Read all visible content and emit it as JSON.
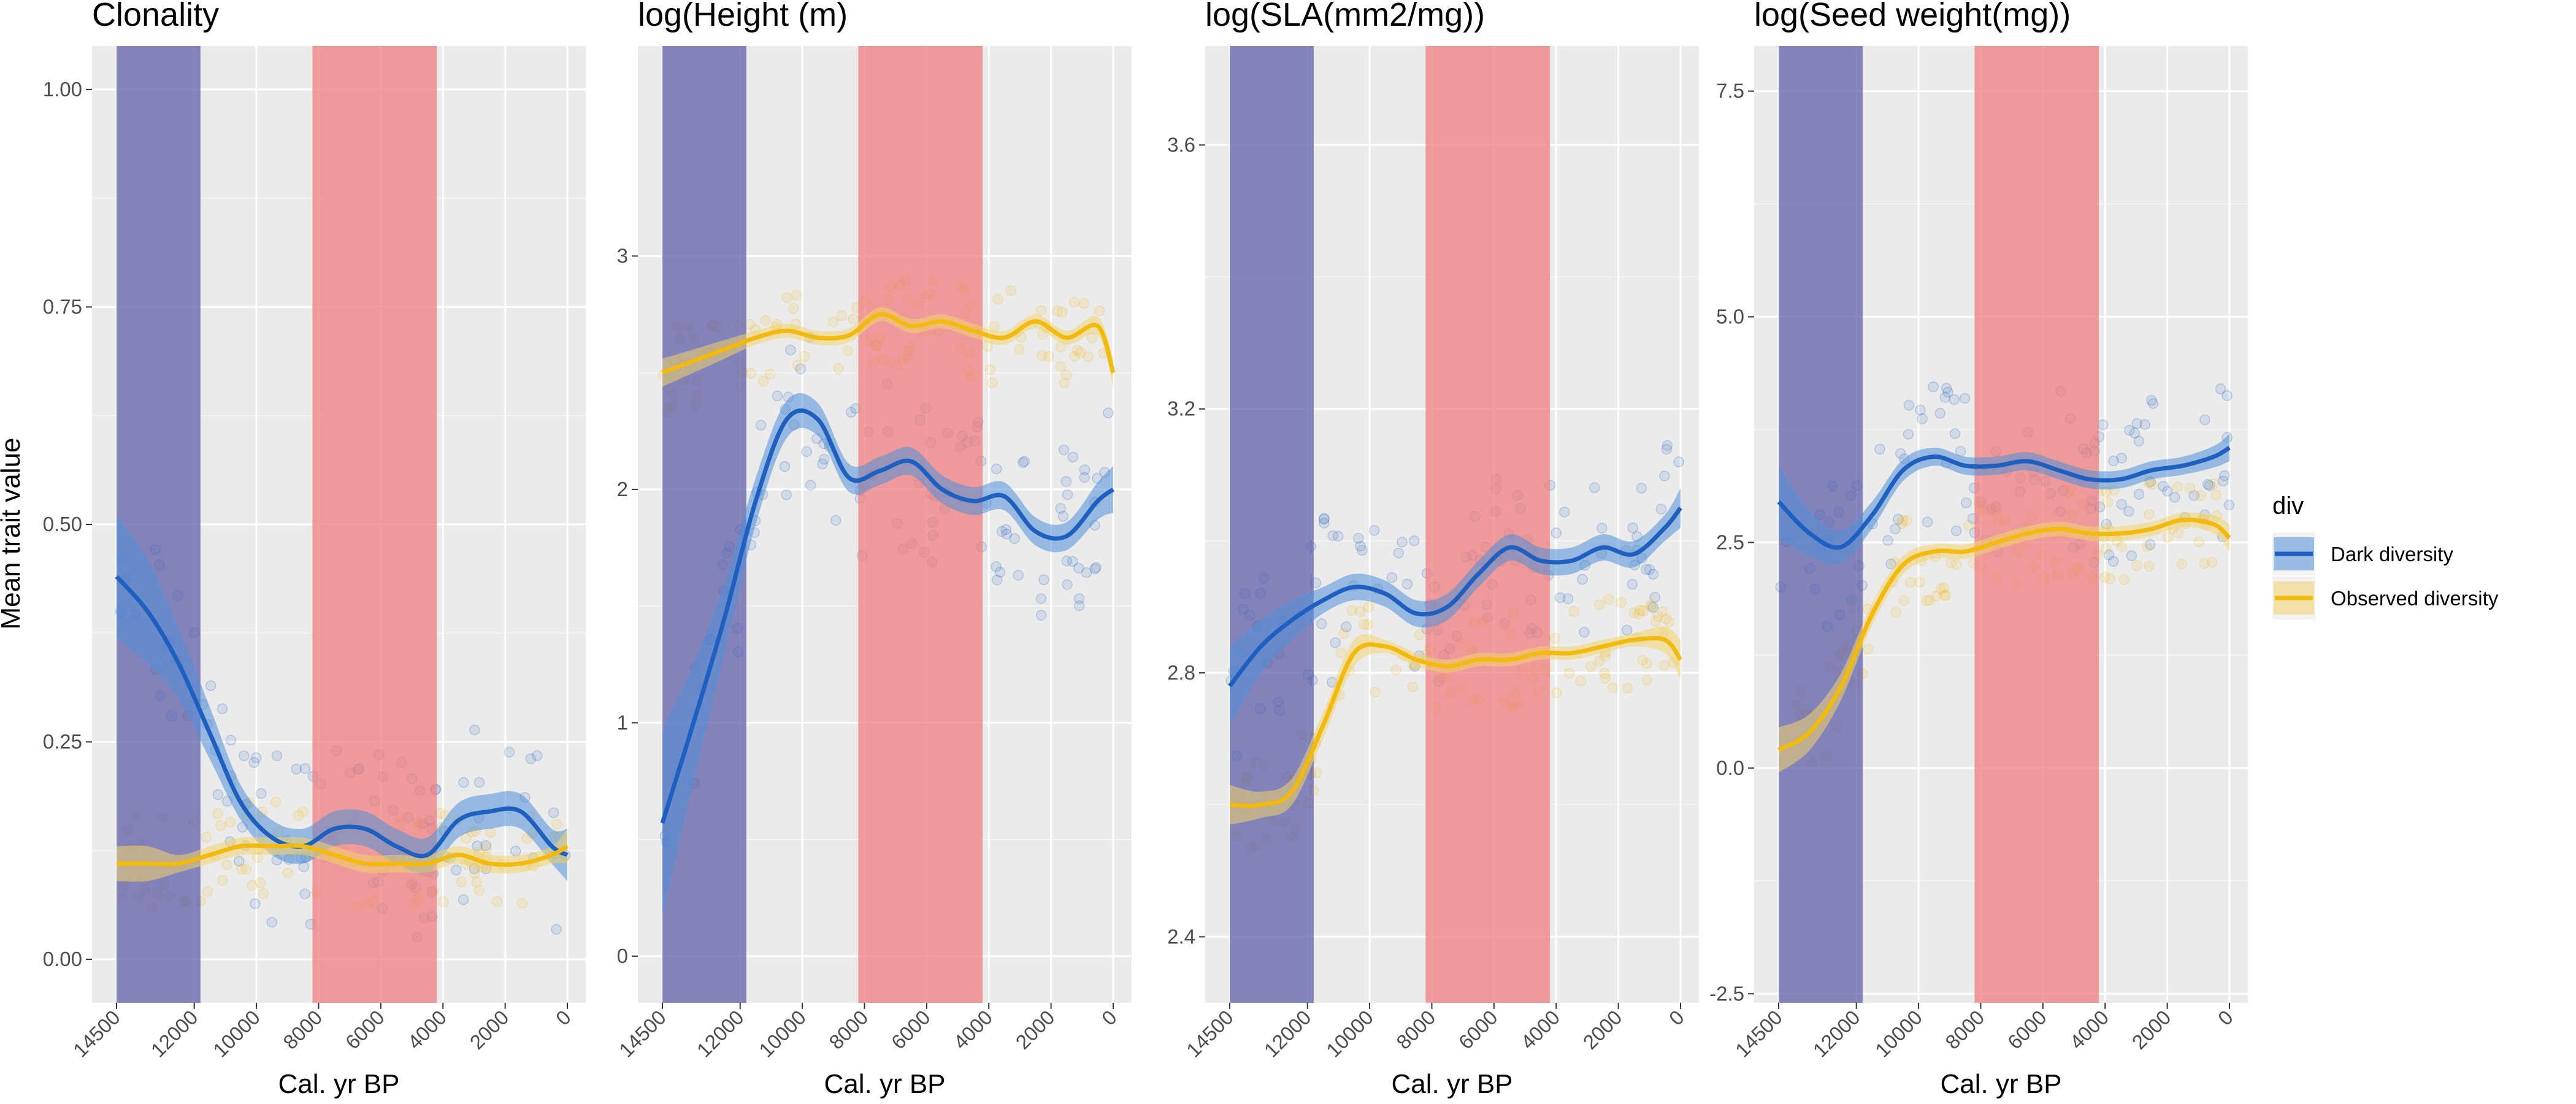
{
  "figure": {
    "y_axis_title": "Mean trait value",
    "x_axis_title": "Cal. yr BP"
  },
  "colors": {
    "panel_bg": "#EBEBEB",
    "grid": "#FFFFFF",
    "dark_diversity": "#1F5FBF",
    "dark_diversity_band": "#4F8FD8",
    "observed_diversity": "#F2B90F",
    "observed_diversity_band": "#F2D46B",
    "shade_early": "#5A5AA8",
    "shade_mid": "#F07A7A"
  },
  "legend": {
    "title": "div",
    "items": [
      {
        "label": "Dark diversity",
        "color": "#1F5FBF"
      },
      {
        "label": "Observed diversity",
        "color": "#F2B90F"
      }
    ]
  },
  "chart_data": [
    {
      "type": "line",
      "title": "Clonality",
      "xlabel": "Cal. yr BP",
      "ylabel": "Mean trait value",
      "x_reversed": true,
      "xlim": [
        14500,
        0
      ],
      "ylim": [
        -0.05,
        1.05
      ],
      "x_ticks": [
        14500,
        12000,
        10000,
        8000,
        6000,
        4000,
        2000,
        0
      ],
      "x_tick_labels": [
        "14500",
        "12000",
        "10000",
        "8000",
        "6000",
        "4000",
        "2000",
        "0"
      ],
      "y_ticks": [
        0,
        0.25,
        0.5,
        0.75,
        1
      ],
      "y_tick_labels": [
        "0.00",
        "0.25",
        "0.50",
        "0.75",
        "1.00"
      ],
      "shaded_periods": [
        [
          14500,
          11800
        ],
        [
          8200,
          4200
        ]
      ],
      "series": [
        {
          "name": "Dark diversity",
          "x": [
            14500,
            13500,
            12500,
            11500,
            10500,
            9500,
            8500,
            7500,
            6500,
            5500,
            4500,
            3500,
            2500,
            1500,
            500,
            0
          ],
          "y": [
            0.44,
            0.4,
            0.34,
            0.26,
            0.18,
            0.14,
            0.13,
            0.15,
            0.15,
            0.13,
            0.12,
            0.16,
            0.17,
            0.17,
            0.13,
            0.12
          ],
          "band": [
            0.07,
            0.06,
            0.04,
            0.03,
            0.02,
            0.02,
            0.02,
            0.02,
            0.02,
            0.02,
            0.02,
            0.02,
            0.02,
            0.02,
            0.02,
            0.03
          ]
        },
        {
          "name": "Observed diversity",
          "x": [
            14500,
            13500,
            12500,
            11500,
            10500,
            9500,
            8500,
            7500,
            6500,
            5500,
            4500,
            3500,
            2500,
            1500,
            500,
            0
          ],
          "y": [
            0.11,
            0.11,
            0.11,
            0.12,
            0.13,
            0.13,
            0.13,
            0.12,
            0.11,
            0.11,
            0.11,
            0.12,
            0.11,
            0.11,
            0.12,
            0.13
          ],
          "band": [
            0.02,
            0.02,
            0.01,
            0.01,
            0.01,
            0.01,
            0.01,
            0.01,
            0.01,
            0.01,
            0.01,
            0.01,
            0.01,
            0.01,
            0.01,
            0.02
          ]
        }
      ]
    },
    {
      "type": "line",
      "title": "log(Height (m)",
      "xlabel": "Cal. yr BP",
      "x_reversed": true,
      "xlim": [
        14500,
        0
      ],
      "ylim": [
        -0.2,
        3.9
      ],
      "x_ticks": [
        14500,
        12000,
        10000,
        8000,
        6000,
        4000,
        2000,
        0
      ],
      "x_tick_labels": [
        "14500",
        "12000",
        "10000",
        "8000",
        "6000",
        "4000",
        "2000",
        "0"
      ],
      "y_ticks": [
        0,
        1,
        2,
        3
      ],
      "y_tick_labels": [
        "0",
        "1",
        "2",
        "3"
      ],
      "shaded_periods": [
        [
          14500,
          11800
        ],
        [
          8200,
          4200
        ]
      ],
      "series": [
        {
          "name": "Dark diversity",
          "x": [
            14500,
            13500,
            12500,
            11500,
            10500,
            9500,
            8500,
            7500,
            6500,
            5500,
            4500,
            3500,
            2500,
            1500,
            500,
            0
          ],
          "y": [
            0.57,
            1.0,
            1.45,
            1.95,
            2.3,
            2.3,
            2.05,
            2.08,
            2.12,
            2.0,
            1.95,
            1.97,
            1.82,
            1.8,
            1.95,
            2.0
          ],
          "band": [
            0.4,
            0.25,
            0.15,
            0.1,
            0.08,
            0.07,
            0.06,
            0.06,
            0.06,
            0.06,
            0.06,
            0.06,
            0.06,
            0.06,
            0.08,
            0.1
          ]
        },
        {
          "name": "Observed diversity",
          "x": [
            14500,
            13500,
            12500,
            11500,
            10500,
            9500,
            8500,
            7500,
            6500,
            5500,
            4500,
            3500,
            2500,
            1500,
            500,
            0
          ],
          "y": [
            2.5,
            2.55,
            2.6,
            2.65,
            2.68,
            2.65,
            2.66,
            2.75,
            2.7,
            2.72,
            2.68,
            2.65,
            2.72,
            2.65,
            2.7,
            2.5
          ],
          "band": [
            0.06,
            0.05,
            0.04,
            0.03,
            0.03,
            0.03,
            0.03,
            0.03,
            0.03,
            0.03,
            0.03,
            0.03,
            0.03,
            0.03,
            0.04,
            0.06
          ]
        }
      ]
    },
    {
      "type": "line",
      "title": "log(SLA(mm2/mg))",
      "xlabel": "Cal. yr BP",
      "x_reversed": true,
      "xlim": [
        14500,
        0
      ],
      "ylim": [
        2.3,
        3.75
      ],
      "x_ticks": [
        14500,
        12000,
        10000,
        8000,
        6000,
        4000,
        2000,
        0
      ],
      "x_tick_labels": [
        "14500",
        "12000",
        "10000",
        "8000",
        "6000",
        "4000",
        "2000",
        "0"
      ],
      "y_ticks": [
        2.4,
        2.8,
        3.2,
        3.6
      ],
      "y_tick_labels": [
        "2.4",
        "2.8",
        "3.2",
        "3.6"
      ],
      "shaded_periods": [
        [
          14500,
          11800
        ],
        [
          8200,
          4200
        ]
      ],
      "series": [
        {
          "name": "Dark diversity",
          "x": [
            14500,
            13500,
            12500,
            11500,
            10500,
            9500,
            8500,
            7500,
            6500,
            5500,
            4500,
            3500,
            2500,
            1500,
            500,
            0
          ],
          "y": [
            2.78,
            2.84,
            2.88,
            2.91,
            2.93,
            2.92,
            2.89,
            2.9,
            2.95,
            2.99,
            2.97,
            2.97,
            2.99,
            2.98,
            3.02,
            3.05
          ],
          "band": [
            0.06,
            0.04,
            0.03,
            0.02,
            0.02,
            0.02,
            0.02,
            0.02,
            0.02,
            0.02,
            0.02,
            0.02,
            0.02,
            0.02,
            0.02,
            0.03
          ]
        },
        {
          "name": "Observed diversity",
          "x": [
            14500,
            13500,
            12500,
            11500,
            10500,
            9500,
            8500,
            7500,
            6500,
            5500,
            4500,
            3500,
            2500,
            1500,
            500,
            0
          ],
          "y": [
            2.6,
            2.6,
            2.62,
            2.72,
            2.83,
            2.84,
            2.82,
            2.81,
            2.82,
            2.82,
            2.83,
            2.83,
            2.84,
            2.85,
            2.85,
            2.82
          ],
          "band": [
            0.03,
            0.02,
            0.02,
            0.02,
            0.02,
            0.01,
            0.01,
            0.01,
            0.01,
            0.01,
            0.01,
            0.01,
            0.01,
            0.01,
            0.02,
            0.03
          ]
        }
      ]
    },
    {
      "type": "line",
      "title": "log(Seed weight(mg))",
      "xlabel": "Cal. yr BP",
      "x_reversed": true,
      "xlim": [
        14500,
        0
      ],
      "ylim": [
        -2.6,
        8.0
      ],
      "x_ticks": [
        14500,
        12000,
        10000,
        8000,
        6000,
        4000,
        2000,
        0
      ],
      "x_tick_labels": [
        "14500",
        "12000",
        "10000",
        "8000",
        "6000",
        "4000",
        "2000",
        "0"
      ],
      "y_ticks": [
        -2.5,
        0,
        2.5,
        5,
        7.5
      ],
      "y_tick_labels": [
        "-2.5",
        "0.0",
        "2.5",
        "5.0",
        "7.5"
      ],
      "shaded_periods": [
        [
          14500,
          11800
        ],
        [
          8200,
          4200
        ]
      ],
      "series": [
        {
          "name": "Dark diversity",
          "x": [
            14500,
            13500,
            12500,
            11500,
            10500,
            9500,
            8500,
            7500,
            6500,
            5500,
            4500,
            3500,
            2500,
            1500,
            500,
            0
          ],
          "y": [
            2.95,
            2.6,
            2.45,
            2.8,
            3.3,
            3.45,
            3.35,
            3.35,
            3.4,
            3.3,
            3.2,
            3.2,
            3.3,
            3.35,
            3.45,
            3.55
          ],
          "band": [
            0.4,
            0.25,
            0.18,
            0.15,
            0.12,
            0.1,
            0.1,
            0.1,
            0.1,
            0.1,
            0.1,
            0.1,
            0.1,
            0.1,
            0.12,
            0.15
          ]
        },
        {
          "name": "Observed diversity",
          "x": [
            14500,
            13500,
            12500,
            11500,
            10500,
            9500,
            8500,
            7500,
            6500,
            5500,
            4500,
            3500,
            2500,
            1500,
            500,
            0
          ],
          "y": [
            0.2,
            0.4,
            0.9,
            1.7,
            2.25,
            2.4,
            2.4,
            2.5,
            2.6,
            2.65,
            2.6,
            2.6,
            2.65,
            2.75,
            2.7,
            2.55
          ],
          "band": [
            0.25,
            0.2,
            0.15,
            0.12,
            0.1,
            0.08,
            0.08,
            0.08,
            0.08,
            0.08,
            0.08,
            0.08,
            0.08,
            0.08,
            0.1,
            0.15
          ]
        }
      ]
    }
  ]
}
